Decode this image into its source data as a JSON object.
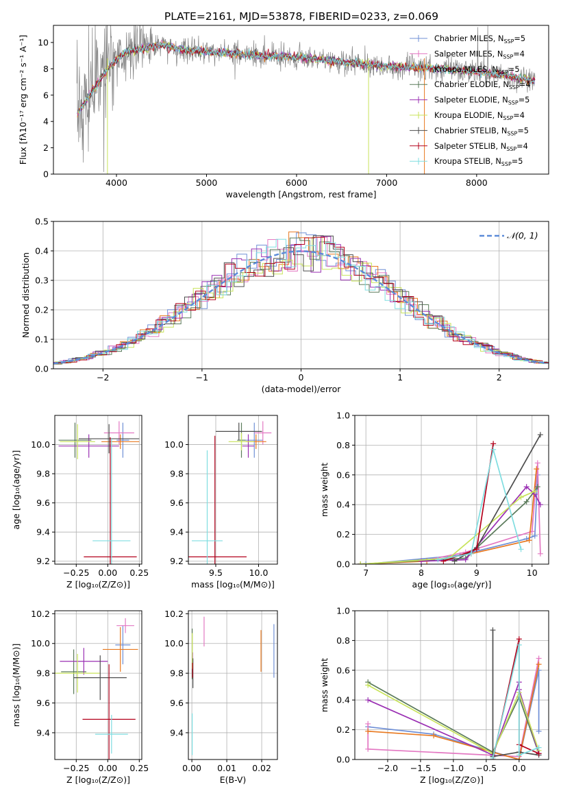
{
  "figure_title": "PLATE=2161, MJD=53878, FIBERID=0233, z=0.069",
  "models": [
    {
      "name": "Chabrier MILES, N",
      "sub": "SSP",
      "tail": "=5",
      "color": "#6f8fd6"
    },
    {
      "name": "Salpeter MILES, N",
      "sub": "SSP",
      "tail": "=4",
      "color": "#e377c2"
    },
    {
      "name": "Kroupa MILES, N",
      "sub": "SSP",
      "tail": "=5",
      "color": "#e8781e"
    },
    {
      "name": "Chabrier ELODIE, N",
      "sub": "SSP",
      "tail": "=4",
      "color": "#5a7a5a"
    },
    {
      "name": "Salpeter ELODIE, N",
      "sub": "SSP",
      "tail": "=5",
      "color": "#9a2fb3"
    },
    {
      "name": "Kroupa ELODIE, N",
      "sub": "SSP",
      "tail": "=4",
      "color": "#c8e35a"
    },
    {
      "name": "Chabrier STELIB, N",
      "sub": "SSP",
      "tail": "=5",
      "color": "#4d4d4d"
    },
    {
      "name": "Salpeter STELIB, N",
      "sub": "SSP",
      "tail": "=4",
      "color": "#b3001b"
    },
    {
      "name": "Kroupa STELIB, N",
      "sub": "SSP",
      "tail": "=5",
      "color": "#7fdde0"
    }
  ],
  "chart_data": [
    {
      "id": "spectrum",
      "type": "line",
      "xlabel": "wavelength [Angstrom, rest frame]",
      "ylabel": "Flux [fλ10⁻¹⁷ erg cm⁻² s⁻¹ A⁻¹]",
      "xlim": [
        3300,
        8800
      ],
      "ylim": [
        0,
        11.3
      ],
      "xticks": [
        4000,
        5000,
        6000,
        7000,
        8000
      ],
      "yticks": [
        0,
        2,
        4,
        6,
        8,
        10
      ],
      "data_color": "#808080",
      "data_approx": {
        "x": [
          3560,
          3700,
          3900,
          4100,
          4300,
          4500,
          4800,
          5200,
          5600,
          6000,
          6400,
          6800,
          7200,
          7600,
          8000,
          8400,
          8600
        ],
        "y": [
          4.5,
          6.0,
          8.0,
          9.3,
          9.5,
          9.8,
          9.4,
          9.2,
          9.0,
          8.9,
          8.6,
          8.3,
          8.1,
          8.0,
          7.8,
          7.4,
          7.1
        ]
      }
    },
    {
      "id": "residual-histogram",
      "type": "histogram",
      "xlabel": "(data-model)/error",
      "ylabel": "Normed distribution",
      "xlim": [
        -2.5,
        2.5
      ],
      "ylim": [
        0,
        0.5
      ],
      "xticks": [
        -2,
        -1,
        0,
        1,
        2
      ],
      "yticks": [
        0.0,
        0.1,
        0.2,
        0.3,
        0.4,
        0.5
      ],
      "legend": "𝒩(0, 1)",
      "legend_position": "top-right",
      "reference_color": "#5b8bd8",
      "bin_width": 0.1
    },
    {
      "id": "age-vs-metallicity",
      "type": "errorbar",
      "xlabel": "Z [log₁₀(Z/Z⊙)]",
      "ylabel": "age  [log₁₀(age/yr)]",
      "xlim": [
        -0.42,
        0.27
      ],
      "ylim": [
        9.18,
        10.2
      ],
      "xticks": [
        -0.25,
        0.0,
        0.25
      ],
      "yticks": [
        9.2,
        9.4,
        9.6,
        9.8,
        10.0
      ],
      "points": [
        {
          "m": 0,
          "x": 0.12,
          "y": 10.03,
          "xe": 0.05,
          "ye": 0.12
        },
        {
          "m": 1,
          "x": 0.09,
          "y": 10.08,
          "xe": 0.12,
          "ye": 0.08
        },
        {
          "m": 2,
          "x": 0.1,
          "y": 10.02,
          "xe": 0.15,
          "ye": 0.05
        },
        {
          "m": 3,
          "x": -0.26,
          "y": 10.03,
          "xe": 0.13,
          "ye": 0.12
        },
        {
          "m": 4,
          "x": -0.15,
          "y": 9.99,
          "xe": 0.24,
          "ye": 0.08
        },
        {
          "m": 5,
          "x": -0.24,
          "y": 10.02,
          "xe": 0.14,
          "ye": 0.12
        },
        {
          "m": 6,
          "x": 0.01,
          "y": 10.04,
          "xe": 0.24,
          "ye": 0.1
        },
        {
          "m": 7,
          "x": 0.02,
          "y": 9.23,
          "xe": 0.21,
          "ye": 0.82
        },
        {
          "m": 8,
          "x": 0.03,
          "y": 9.34,
          "xe": 0.15,
          "ye": 0.7
        }
      ]
    },
    {
      "id": "age-vs-mass",
      "type": "errorbar",
      "xlabel": "mass [log₁₀(M/M⊙)]",
      "ylabel": "",
      "xlim": [
        9.18,
        10.22
      ],
      "ylim": [
        9.18,
        10.2
      ],
      "xticks": [
        9.5,
        10.0
      ],
      "yticks": [
        9.2,
        9.4,
        9.6,
        9.8,
        10.0
      ],
      "points": [
        {
          "m": 0,
          "x": 9.95,
          "y": 10.03,
          "xe": 0.1,
          "ye": 0.12
        },
        {
          "m": 1,
          "x": 10.05,
          "y": 10.08,
          "xe": 0.1,
          "ye": 0.08
        },
        {
          "m": 2,
          "x": 9.97,
          "y": 10.02,
          "xe": 0.12,
          "ye": 0.05
        },
        {
          "m": 3,
          "x": 9.8,
          "y": 10.03,
          "xe": 0.05,
          "ye": 0.12
        },
        {
          "m": 4,
          "x": 9.88,
          "y": 9.99,
          "xe": 0.07,
          "ye": 0.08
        },
        {
          "m": 5,
          "x": 9.8,
          "y": 10.02,
          "xe": 0.15,
          "ye": 0.06
        },
        {
          "m": 6,
          "x": 9.77,
          "y": 10.09,
          "xe": 0.27,
          "ye": 0.06
        },
        {
          "m": 7,
          "x": 9.49,
          "y": 9.23,
          "xe": 0.37,
          "ye": 0.83
        },
        {
          "m": 8,
          "x": 9.4,
          "y": 9.34,
          "xe": 0.18,
          "ye": 0.62
        }
      ]
    },
    {
      "id": "mass-weight-vs-age",
      "type": "line",
      "xlabel": "age  [log₁₀(age/yr)]",
      "ylabel": "mass weight",
      "xlim": [
        6.8,
        10.3
      ],
      "ylim": [
        0,
        1.0
      ],
      "xticks": [
        7,
        8,
        9,
        10
      ],
      "yticks": [
        0.0,
        0.2,
        0.4,
        0.6,
        0.8,
        1.0
      ],
      "series": [
        {
          "m": 0,
          "x": [
            6.9,
            7.0,
            8.7,
            9.9,
            10.05,
            10.1
          ],
          "y": [
            0.0,
            0.0,
            0.06,
            0.17,
            0.19,
            0.6
          ]
        },
        {
          "m": 1,
          "x": [
            6.9,
            8.0,
            8.8,
            10.0,
            10.1,
            10.15
          ],
          "y": [
            0.0,
            0.02,
            0.08,
            0.22,
            0.68,
            0.07
          ]
        },
        {
          "m": 2,
          "x": [
            6.9,
            8.1,
            8.9,
            9.95,
            10.08
          ],
          "y": [
            0.0,
            0.02,
            0.07,
            0.16,
            0.64
          ]
        },
        {
          "m": 3,
          "x": [
            6.9,
            8.8,
            9.9,
            10.1
          ],
          "y": [
            0.0,
            0.04,
            0.42,
            0.52
          ]
        },
        {
          "m": 4,
          "x": [
            8.0,
            8.8,
            9.9,
            10.05,
            10.15
          ],
          "y": [
            0.02,
            0.03,
            0.52,
            0.47,
            0.4
          ]
        },
        {
          "m": 5,
          "x": [
            6.9,
            8.5,
            9.8,
            10.05
          ],
          "y": [
            0.0,
            0.04,
            0.45,
            0.49
          ]
        },
        {
          "m": 6,
          "x": [
            8.6,
            9.0,
            10.15
          ],
          "y": [
            0.02,
            0.11,
            0.87
          ]
        },
        {
          "m": 7,
          "x": [
            8.4,
            9.0,
            9.3
          ],
          "y": [
            0.02,
            0.1,
            0.81
          ]
        },
        {
          "m": 8,
          "x": [
            8.3,
            8.9,
            9.3,
            9.8
          ],
          "y": [
            0.03,
            0.07,
            0.77,
            0.1
          ]
        }
      ]
    },
    {
      "id": "mass-vs-metallicity",
      "type": "errorbar",
      "xlabel": "Z [log₁₀(Z/Z⊙)]",
      "ylabel": "mass [log₁₀(M/M⊙)]",
      "xlim": [
        -0.42,
        0.27
      ],
      "ylim": [
        9.22,
        10.22
      ],
      "xticks": [
        -0.25,
        0.0,
        0.25
      ],
      "yticks": [
        9.4,
        9.6,
        9.8,
        10.0,
        10.2
      ],
      "points": [
        {
          "m": 0,
          "x": 0.12,
          "y": 9.99,
          "xe": 0.06,
          "ye": 0.13
        },
        {
          "m": 1,
          "x": 0.14,
          "y": 10.12,
          "xe": 0.07,
          "ye": 0.05
        },
        {
          "m": 2,
          "x": 0.1,
          "y": 9.96,
          "xe": 0.14,
          "ye": 0.15
        },
        {
          "m": 3,
          "x": -0.27,
          "y": 9.81,
          "xe": 0.1,
          "ye": 0.15
        },
        {
          "m": 4,
          "x": -0.19,
          "y": 9.88,
          "xe": 0.19,
          "ye": 0.09
        },
        {
          "m": 5,
          "x": -0.24,
          "y": 9.8,
          "xe": 0.18,
          "ye": 0.13
        },
        {
          "m": 6,
          "x": -0.06,
          "y": 9.77,
          "xe": 0.21,
          "ye": 0.15
        },
        {
          "m": 7,
          "x": 0.01,
          "y": 9.49,
          "xe": 0.21,
          "ye": 0.37
        },
        {
          "m": 8,
          "x": 0.03,
          "y": 9.39,
          "xe": 0.13,
          "ye": 0.13
        }
      ]
    },
    {
      "id": "mass-vs-extinction",
      "type": "errorbar",
      "xlabel": "E(B-V)",
      "ylabel": "",
      "xlim": [
        -0.001,
        0.0245
      ],
      "ylim": [
        9.22,
        10.22
      ],
      "xticks": [
        0.0,
        0.01,
        0.02
      ],
      "yticks": [
        9.4,
        9.6,
        9.8,
        10.0,
        10.2
      ],
      "points": [
        {
          "m": 0,
          "x": 0.0235,
          "y": 9.95,
          "xe": 0,
          "ye": 0.18
        },
        {
          "m": 1,
          "x": 0.0035,
          "y": 10.08,
          "xe": 0,
          "ye": 0.1
        },
        {
          "m": 2,
          "x": 0.0198,
          "y": 9.95,
          "xe": 0,
          "ye": 0.14
        },
        {
          "m": 3,
          "x": 0.0001,
          "y": 9.93,
          "xe": 0,
          "ye": 0.17
        },
        {
          "m": 4,
          "x": 0.0002,
          "y": 9.86,
          "xe": 0,
          "ye": 0.08
        },
        {
          "m": 5,
          "x": 0.0001,
          "y": 9.95,
          "xe": 0,
          "ye": 0.12
        },
        {
          "m": 6,
          "x": 0.0003,
          "y": 9.8,
          "xe": 0,
          "ye": 0.1
        },
        {
          "m": 7,
          "x": 0.0002,
          "y": 9.82,
          "xe": 0,
          "ye": 0.05
        },
        {
          "m": 8,
          "x": 0.0001,
          "y": 9.39,
          "xe": 0,
          "ye": 0.14
        }
      ]
    },
    {
      "id": "mass-weight-vs-metallicity",
      "type": "line",
      "xlabel": "Z [log₁₀(Z/Z⊙)]",
      "ylabel": "mass weight",
      "xlim": [
        -2.5,
        0.45
      ],
      "ylim": [
        0,
        1.0
      ],
      "xticks": [
        -2.0,
        -1.5,
        -1.0,
        -0.5,
        0.0
      ],
      "yticks": [
        0.0,
        0.2,
        0.4,
        0.6,
        0.8,
        1.0
      ],
      "series": [
        {
          "m": 0,
          "x": [
            -2.3,
            -1.3,
            0.0,
            0.3,
            0.3
          ],
          "y": [
            0.22,
            0.17,
            0.0,
            0.6,
            0.19
          ]
        },
        {
          "m": 1,
          "x": [
            -2.3,
            -2.3,
            0.0,
            0.3
          ],
          "y": [
            0.24,
            0.07,
            0.02,
            0.68
          ]
        },
        {
          "m": 2,
          "x": [
            -2.3,
            -1.3,
            0.0,
            0.3
          ],
          "y": [
            0.19,
            0.16,
            0.0,
            0.64
          ]
        },
        {
          "m": 3,
          "x": [
            -2.3,
            -0.4,
            0.0,
            0.3
          ],
          "y": [
            0.52,
            0.05,
            0.42,
            0.04
          ]
        },
        {
          "m": 4,
          "x": [
            -2.3,
            -0.4,
            0.0,
            0.0,
            0.3
          ],
          "y": [
            0.4,
            0.03,
            0.52,
            0.47,
            0.04
          ]
        },
        {
          "m": 5,
          "x": [
            -2.3,
            -0.4,
            0.0,
            0.3
          ],
          "y": [
            0.5,
            0.04,
            0.45,
            0.06
          ]
        },
        {
          "m": 6,
          "x": [
            -0.4,
            -0.4,
            0.0,
            0.3
          ],
          "y": [
            0.87,
            0.02,
            0.05,
            0.03
          ]
        },
        {
          "m": 7,
          "x": [
            -0.4,
            0.0,
            0.0,
            0.3
          ],
          "y": [
            0.0,
            0.81,
            0.1,
            0.04
          ]
        },
        {
          "m": 8,
          "x": [
            -0.4,
            0.0,
            0.0,
            0.3
          ],
          "y": [
            0.01,
            0.77,
            0.03,
            0.08
          ]
        }
      ]
    }
  ]
}
